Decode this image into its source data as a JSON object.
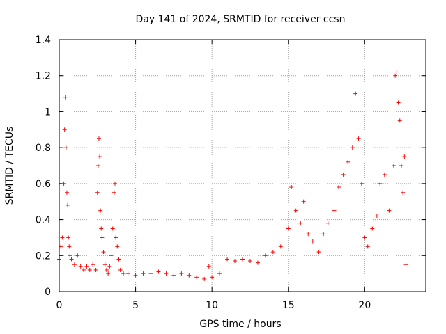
{
  "chart_data": {
    "type": "scatter",
    "title": "Day 141 of 2024, SRMTID for receiver ccsn",
    "xlabel": "GPS time / hours",
    "ylabel": "SRMTID / TECUs",
    "xlim": [
      0,
      24
    ],
    "ylim": [
      0,
      1.4
    ],
    "xticks": [
      0,
      5,
      10,
      15,
      20
    ],
    "xtick_labels": [
      "0",
      "5",
      "10",
      "15",
      "20"
    ],
    "yticks": [
      0,
      0.2,
      0.4,
      0.6,
      0.8,
      1.0,
      1.2,
      1.4
    ],
    "ytick_labels": [
      "0",
      "0.2",
      "0.4",
      "0.6",
      "0.8",
      "1",
      "1.2",
      "1.4"
    ],
    "grid": true,
    "marker": "+",
    "color": "#ff0000",
    "series": [
      {
        "name": "SRMTID",
        "x": [
          0.0,
          0.1,
          0.2,
          0.3,
          0.35,
          0.4,
          0.45,
          0.5,
          0.55,
          0.6,
          0.65,
          0.7,
          0.8,
          1.0,
          1.2,
          1.4,
          1.6,
          1.8,
          2.0,
          2.2,
          2.4,
          2.5,
          2.55,
          2.6,
          2.65,
          2.7,
          2.75,
          2.8,
          2.9,
          3.0,
          3.1,
          3.2,
          3.3,
          3.4,
          3.5,
          3.6,
          3.65,
          3.7,
          3.8,
          3.9,
          4.0,
          4.2,
          4.5,
          5.0,
          5.5,
          6.0,
          6.5,
          7.0,
          7.5,
          8.0,
          8.5,
          9.0,
          9.5,
          9.8,
          10.0,
          10.5,
          11.0,
          11.5,
          12.0,
          12.5,
          13.0,
          13.5,
          14.0,
          14.5,
          15.0,
          15.2,
          15.5,
          15.8,
          16.0,
          16.3,
          16.6,
          17.0,
          17.3,
          17.6,
          18.0,
          18.3,
          18.6,
          18.9,
          19.2,
          19.4,
          19.6,
          19.8,
          20.0,
          20.2,
          20.5,
          20.8,
          21.0,
          21.3,
          21.6,
          21.9,
          22.0,
          22.1,
          22.2,
          22.3,
          22.4,
          22.5,
          22.6,
          22.7
        ],
        "y": [
          0.18,
          0.25,
          0.3,
          0.6,
          0.9,
          1.08,
          0.8,
          0.55,
          0.48,
          0.3,
          0.25,
          0.2,
          0.18,
          0.15,
          0.2,
          0.14,
          0.12,
          0.14,
          0.12,
          0.15,
          0.12,
          0.55,
          0.7,
          0.85,
          0.75,
          0.45,
          0.35,
          0.3,
          0.22,
          0.15,
          0.12,
          0.1,
          0.14,
          0.2,
          0.35,
          0.55,
          0.6,
          0.3,
          0.25,
          0.18,
          0.12,
          0.1,
          0.1,
          0.09,
          0.1,
          0.1,
          0.11,
          0.1,
          0.09,
          0.1,
          0.09,
          0.08,
          0.07,
          0.14,
          0.08,
          0.1,
          0.18,
          0.17,
          0.18,
          0.17,
          0.16,
          0.2,
          0.22,
          0.25,
          0.35,
          0.58,
          0.45,
          0.38,
          0.5,
          0.32,
          0.28,
          0.22,
          0.32,
          0.38,
          0.45,
          0.58,
          0.65,
          0.72,
          0.8,
          1.1,
          0.85,
          0.6,
          0.3,
          0.25,
          0.35,
          0.42,
          0.6,
          0.65,
          0.45,
          0.7,
          1.2,
          1.22,
          1.05,
          0.95,
          0.7,
          0.55,
          0.75,
          0.15
        ]
      }
    ]
  }
}
